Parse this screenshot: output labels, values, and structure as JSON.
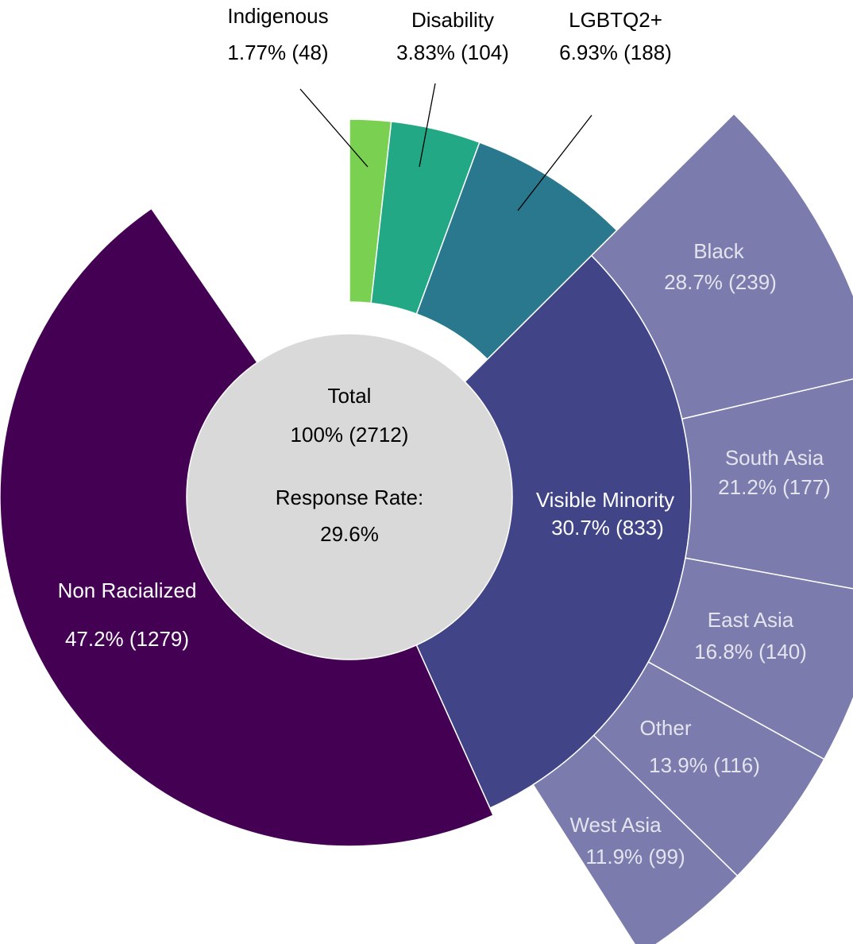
{
  "chart_data": {
    "type": "sunburst",
    "total": 2712,
    "center": {
      "label": "Total",
      "value_label": "100% (2712)",
      "rate_title": "Response Rate:",
      "rate": "29.6%",
      "color": "#d9d9d9"
    },
    "segments": [
      {
        "name": "Indigenous",
        "value": 48,
        "value_label": "1.77% (48)",
        "color": "#7ad151"
      },
      {
        "name": "Disability",
        "value": 104,
        "value_label": "3.83% (104)",
        "color": "#22a884"
      },
      {
        "name": "LGBTQ2+",
        "value": 188,
        "value_label": "6.93% (188)",
        "color": "#2a788e"
      },
      {
        "name": "Visible Minority",
        "value": 833,
        "value_label": "30.7% (833)",
        "color": "#414487",
        "children": [
          {
            "name": "Black",
            "value": 239,
            "value_label": "28.7% (239)"
          },
          {
            "name": "South Asia",
            "value": 177,
            "value_label": "21.2% (177)"
          },
          {
            "name": "East Asia",
            "value": 140,
            "value_label": "16.8% (140)"
          },
          {
            "name": "Other",
            "value": 116,
            "value_label": "13.9% (116)"
          },
          {
            "name": "West Asia",
            "value": 99,
            "value_label": "11.9% (99)"
          }
        ],
        "children_color": "#7b7bad"
      },
      {
        "name": "Non Racialized",
        "value": 1279,
        "value_label": "47.2% (1279)",
        "color": "#440154"
      }
    ]
  }
}
